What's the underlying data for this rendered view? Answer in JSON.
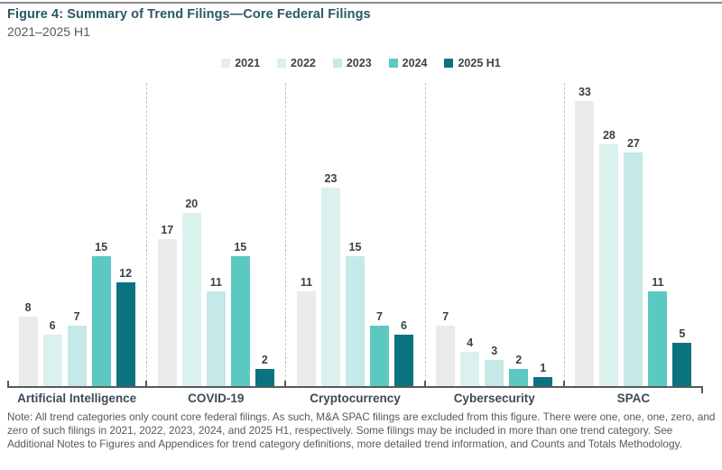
{
  "header": {
    "title": "Figure 4: Summary of Trend Filings—Core Federal Filings",
    "subtitle": "2021–2025 H1"
  },
  "chart_data": {
    "type": "bar",
    "title": "Figure 4: Summary of Trend Filings—Core Federal Filings",
    "subtitle": "2021–2025 H1",
    "categories": [
      "Artificial Intelligence",
      "COVID-19",
      "Cryptocurrency",
      "Cybersecurity",
      "SPAC"
    ],
    "series": [
      {
        "name": "2021",
        "color": "#ebebeb",
        "values": [
          8,
          17,
          11,
          7,
          33
        ]
      },
      {
        "name": "2022",
        "color": "#daf1ee",
        "values": [
          6,
          20,
          23,
          4,
          28
        ]
      },
      {
        "name": "2023",
        "color": "#c5e9e6",
        "values": [
          7,
          11,
          15,
          3,
          27
        ]
      },
      {
        "name": "2024",
        "color": "#5bc8c2",
        "values": [
          15,
          15,
          7,
          2,
          11
        ]
      },
      {
        "name": "2025 H1",
        "color": "#0b7280",
        "values": [
          12,
          2,
          6,
          1,
          5
        ]
      }
    ],
    "ylim": [
      0,
      33
    ],
    "xlabel": "",
    "ylabel": "",
    "grid": false,
    "legend_position": "top",
    "value_labels": true,
    "axis_color": "#58595b",
    "separator_style": "dashed"
  },
  "note": {
    "text": "Note: All trend categories only count core federal filings. As such, M&A SPAC filings are excluded from this figure. There were one, one, one, zero, and zero of such filings in 2021, 2022, 2023, 2024, and 2025 H1, respectively. Some filings may be included in more than one trend category. See Additional Notes to Figures and Appendices for trend category definitions, more detailed trend information, and Counts and Totals Methodology."
  }
}
